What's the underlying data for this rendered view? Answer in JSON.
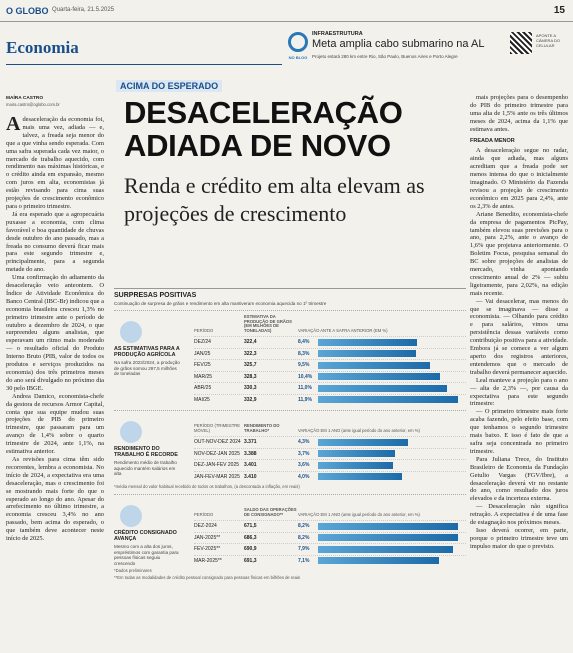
{
  "masthead": {
    "brand": "O GLOBO",
    "date": "Quarta-feira, 21.5.2025",
    "page": "15"
  },
  "promo": {
    "label": "INFRAESTRUTURA",
    "title": "Meta amplia cabo submarino na AL",
    "text": "Projeto estará 280 km entre Rio, São Paulo, Buenos Aires e Porto Alegre",
    "icon": "NO BLOG",
    "qr_text": "APONTE A CÂMERA DO CELULAR"
  },
  "section": "Economia",
  "article": {
    "kicker": "ACIMA DO ESPERADO",
    "headline": [
      "DESACELERAÇÃO",
      "ADIADA DE NOVO"
    ],
    "subheadline": "Renda e crédito em alta elevam as projeções de crescimento",
    "byline": "MAÍRA CASTRO",
    "email": "maira.castro@oglobo.com.br",
    "left_paragraphs": [
      "A desaceleração da economia foi, mais uma vez, adiada — e, talvez, a freada seja menor do que a que vinha sendo esperada. Com uma safra superada cada vez maior, o mercado de trabalho aquecido, com rendimento nas máximas históricas, e o crédito ainda em expansão, mesmo com juros em alta, economistas já estão revisando para cima suas projeções de crescimento econômico para o primeiro trimestre.",
      "Já era esperado que a agropecuária puxasse a economia, com clima favorável e boa quantidade de chuvas desde outubro do ano passado, mas a freada no consumo deverá ficar mais para este segundo trimestre e, principalmente, para a segunda metade do ano.",
      "Uma confirmação do adiamento da desaceleração veio anteontem. O Índice de Atividade Econômica do Banco Central (IBC-Br) indicou que a economia brasileira cresceu 1,3% no primeiro trimestre ante o período de outubro a dezembro de 2024, o que surpreendeu alguns analistas, que esperavam um ritmo mais moderado — o resultado oficial do Produto Interno Bruto (PIB, valor de todos os produtos e serviços produzidos na economia) dos três primeiros meses do ano será divulgado no próximo dia 30 pelo IBGE.",
      "Andrea Damico, economista-chefe da gestora de recursos Armor Capital, conta que sua equipe mudou suas projeções de PIB do primeiro trimestre, que passaram para um avanço de 1,4% sobre o quarto trimestre de 2024, ante 1,1%, na estimativa anterior.",
      "As revisões para cima têm sido recorrentes, lembra a economista. No início de 2024, a expectativa era uma desaceleração, mas o crescimento foi se mostrando mais forte do que o esperado ao longo do ano. Apesar do arrefecimento no último trimestre, a economia cresceu 3,4% no ano passado, bem acima do esperado, o que também deve acontecer neste início de 2025."
    ],
    "right_before": [
      "mais projeções para o desempenho do PIB do primeiro trimestre para uma alta de 1,5% ante os três últimos meses de 2024, acima da 1,1% que estimava antes."
    ],
    "right_subhead": "FREADA MENOR",
    "right_after": [
      "A desaceleração segue no radar, ainda que adiada, mas alguns acreditam que a freada pode ser menos intensa do que o inicialmente imaginado. O Ministério da Fazenda revisou a projeção de crescimento econômico em 2025 para 2,4%, ante os 2,3% de antes.",
      "Ariane Benedito, economista-chefe da empresa de pagamentos PicPay, também elevou suas previsões para o ano, para 2,2%, ante o avanço de 1,6% que projetava anteriormente. O Boletim Focus, pesquisa semanal do BC sobre projeções de analistas de mercado, vinha apontando crescimento anual de 2% — subiu ligeiramente, para 2,02%, na edição mais recente.",
      "— Vai desacelerar, mas menos do que se imaginava — disse a economista. — Olhando para crédito e para salários, vimos uma persistência dessas variáveis como contribuição positiva para a atividade. Embora já se comece a ver algum aperto dos registros anteriores, entendemos que o mercado de trabalho deverá permanecer aquecido.",
      "Leal manteve a projeção para o ano — alta de 2,3% —, por causa da expectativa para este segundo trimestre:",
      "— O primeiro trimestre mais forte acaba fazendo, pelo efeito base, com que tenhamos o segundo trimestre mais baixo. E isso é fato de que a safra seja concentrada no primeiro trimestre.",
      "Para Juliana Trece, do Instituto Brasileiro de Economia da Fundação Getulio Vargas (FGV/Ibre), a desaceleração deverá vir no restante do ano, como resultado dos juros elevados e da incerteza externa.",
      "— Desaceleração não significa retração. A expectativa é de uma fase de estagnação nos próximos meses.",
      "Isso deverá ocorrer, em parte, porque o primeiro trimestre teve um impulso maior do que o previsto."
    ]
  },
  "infographic": {
    "title": "SURPRESAS POSITIVAS",
    "subtitle": "Continuação de surpresa de grãos e rendimento em alta mantiveram economia aquecida no 1º trimestre",
    "sections": [
      {
        "label": "AS ESTIMATIVAS PARA A PRODUÇÃO AGRÍCOLA",
        "description": "Na safra 2023/2024, a produção de grãos somou 297,5 milhões de toneladas",
        "headers": [
          "PERÍODO",
          "ESTIMATIVA DA PRODUÇÃO DE GRÃOS (EM MILHÕES DE TONELADAS)",
          "VARIAÇÃO ANTE A SAFRA ANTERIOR (EM %)"
        ],
        "rows": [
          {
            "period": "DEZ/24",
            "value": "322,4",
            "change": 8.4,
            "change_label": "8,4%"
          },
          {
            "period": "JAN/25",
            "value": "322,3",
            "change": 8.3,
            "change_label": "8,3%"
          },
          {
            "period": "FEV/25",
            "value": "325,7",
            "change": 9.5,
            "change_label": "9,5%"
          },
          {
            "period": "MAR/25",
            "value": "328,3",
            "change": 10.4,
            "change_label": "10,4%"
          },
          {
            "period": "ABR/25",
            "value": "330,3",
            "change": 11.0,
            "change_label": "11,0%"
          },
          {
            "period": "MAI/25",
            "value": "332,9",
            "change": 11.9,
            "change_label": "11,9%"
          }
        ],
        "notes": []
      },
      {
        "label": "RENDIMENTO DO TRABALHO É RECORDE",
        "description": "Rendimento médio de trabalho aquecido mantém salários em alta",
        "headers": [
          "PERÍODO (TRIMESTRE MÓVEL)",
          "RENDIMENTO DO TRABALHO*",
          "VARIAÇÃO EM 1 ANO (ante igual período do ano anterior, em %)"
        ],
        "rows": [
          {
            "period": "OUT-NOV-DEZ 2024",
            "value": "3.371",
            "change": 4.3,
            "change_label": "4,3%"
          },
          {
            "period": "NOV-DEZ-JAN 2025",
            "value": "3.388",
            "change": 3.7,
            "change_label": "3,7%"
          },
          {
            "period": "DEZ-JAN-FEV 2025",
            "value": "3.401",
            "change": 3.6,
            "change_label": "3,6%"
          },
          {
            "period": "JAN-FEV-MAR 2025",
            "value": "3.410",
            "change": 4.0,
            "change_label": "4,0%"
          }
        ],
        "notes": [
          "*média mensal do valor habitual recebido de todos os trabalhos, (a descontada a inflação, em reais)"
        ]
      },
      {
        "label": "CRÉDITO CONSIGNADO AVANÇA",
        "description": "Mesmo com a alta dos juros, empréstimos com garantia para pessoas físicas seguiu crescendo",
        "headers": [
          "PERÍODO",
          "SALDO DAS OPERAÇÕES DE CONSIGNADO**",
          "VARIAÇÃO EM 1 ANO (ante igual período do ano anterior, em %)"
        ],
        "rows": [
          {
            "period": "DEZ-2024",
            "value": "671,5",
            "change": 8.2,
            "change_label": "8,2%"
          },
          {
            "period": "JAN-2025**",
            "value": "686,3",
            "change": 8.2,
            "change_label": "8,2%"
          },
          {
            "period": "FEV-2025**",
            "value": "690,9",
            "change": 7.9,
            "change_label": "7,9%"
          },
          {
            "period": "MAR-2025**",
            "value": "691,3",
            "change": 7.1,
            "change_label": "7,1%"
          }
        ],
        "notes": [
          "*Dados preliminares",
          "**Em todas as modalidades de crédito pessoal consignado para pessoas físicas em bilhões de reais"
        ]
      }
    ]
  }
}
